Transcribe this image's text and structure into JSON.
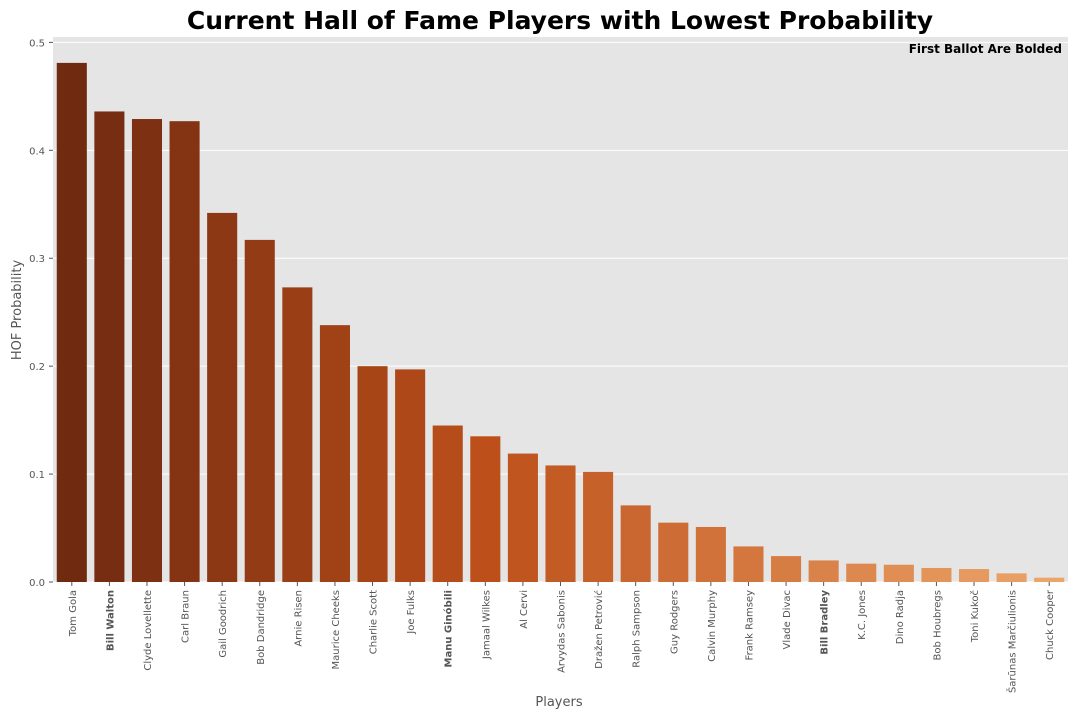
{
  "chart_data": {
    "type": "bar",
    "title": "Current Hall of Fame Players with Lowest Probability",
    "annotation": "First Ballot Are Bolded",
    "xlabel": "Players",
    "ylabel": "HOF Probability",
    "ylim": [
      0,
      0.5
    ],
    "yticks": [
      "0.0",
      "0.1",
      "0.2",
      "0.3",
      "0.4",
      "0.5"
    ],
    "grid": true,
    "categories": [
      "Tom Gola",
      "Bill Walton",
      "Clyde Lovellette",
      "Carl Braun",
      "Gail Goodrich",
      "Bob Dandridge",
      "Arnie Risen",
      "Maurice Cheeks",
      "Charlie Scott",
      "Joe Fulks",
      "Manu Ginóbili",
      "Jamaal Wilkes",
      "Al Cervi",
      "Arvydas Sabonis",
      "Dražen Petrović",
      "Ralph Sampson",
      "Guy Rodgers",
      "Calvin Murphy",
      "Frank Ramsey",
      "Vlade Divac",
      "Bill Bradley",
      "K.C. Jones",
      "Dino Radja",
      "Bob Houbregs",
      "Toni Kukoč",
      "Šarūnas Marčiulionis",
      "Chuck Cooper"
    ],
    "bold": [
      false,
      true,
      false,
      false,
      false,
      false,
      false,
      false,
      false,
      false,
      true,
      false,
      false,
      false,
      false,
      false,
      false,
      false,
      false,
      false,
      true,
      false,
      false,
      false,
      false,
      false,
      false
    ],
    "values": [
      0.481,
      0.436,
      0.429,
      0.427,
      0.342,
      0.317,
      0.273,
      0.238,
      0.2,
      0.197,
      0.145,
      0.135,
      0.119,
      0.108,
      0.102,
      0.071,
      0.055,
      0.051,
      0.033,
      0.024,
      0.02,
      0.017,
      0.016,
      0.013,
      0.012,
      0.008,
      0.004
    ],
    "colors": {
      "palette_start": "#6f2a10",
      "palette_mid": "#bd4f1a",
      "palette_end": "#eca569",
      "plot_background": "#e5e5e5",
      "grid": "#ffffff",
      "tick_text": "#555555"
    }
  }
}
